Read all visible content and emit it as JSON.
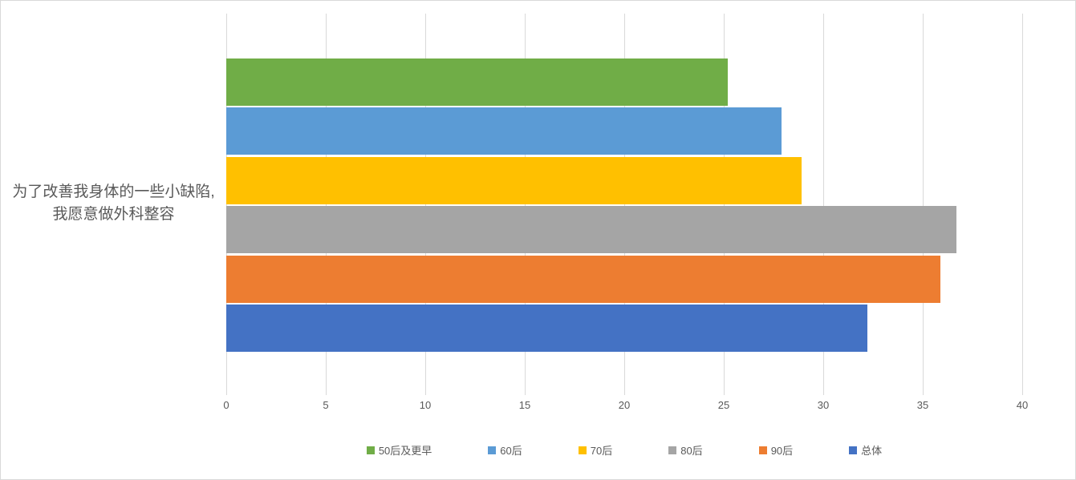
{
  "chart_data": {
    "type": "bar",
    "orientation": "horizontal",
    "title": "",
    "categories": [
      "为了改善我身体的一些小缺陷, 我愿意做外科整容"
    ],
    "category_label_lines": [
      "为了改善我身体的一些小缺陷,",
      "我愿意做外科整容"
    ],
    "series": [
      {
        "name": "50后及更早",
        "color": "#70AD47",
        "values": [
          25.2
        ]
      },
      {
        "name": "60后",
        "color": "#5B9BD5",
        "values": [
          27.9
        ]
      },
      {
        "name": "70后",
        "color": "#FFC000",
        "values": [
          28.9
        ]
      },
      {
        "name": "80后",
        "color": "#A5A5A5",
        "values": [
          36.7
        ]
      },
      {
        "name": "90后",
        "color": "#ED7D31",
        "values": [
          35.9
        ]
      },
      {
        "name": "总体",
        "color": "#4472C4",
        "values": [
          32.2
        ]
      }
    ],
    "x_axis": {
      "min": 0,
      "max": 40,
      "tick_interval": 5,
      "ticks": [
        "0",
        "5",
        "10",
        "15",
        "20",
        "25",
        "30",
        "35",
        "40"
      ]
    },
    "ylabel": "",
    "xlabel": "",
    "grid": true,
    "legend_position": "bottom",
    "style": {
      "gridline_color": "#D9D9D9",
      "text_color": "#595959",
      "frame_border_color": "#D9D9D9",
      "background_color": "#FFFFFF"
    }
  }
}
